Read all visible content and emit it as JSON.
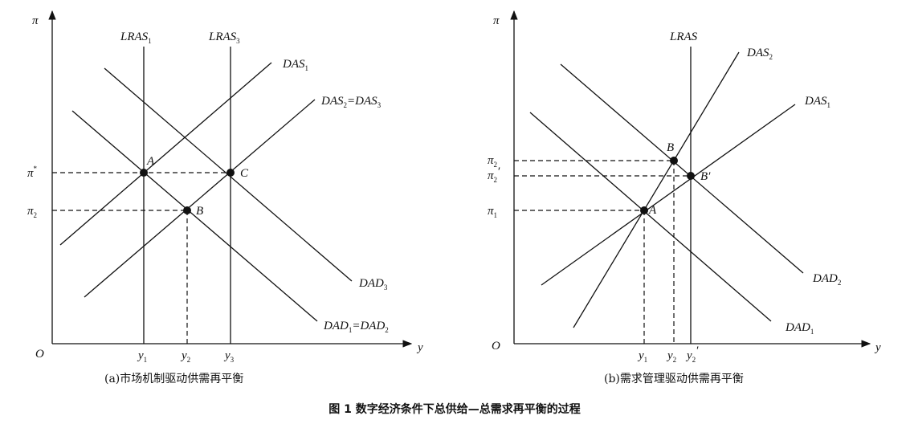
{
  "figure_title": "图 1  数字经济条件下总供给—总需求再平衡的过程",
  "panels": {
    "a": {
      "caption": "(a)市场机制驱动供需再平衡",
      "axis": {
        "y_label": "π",
        "x_label": "y",
        "origin": "O"
      },
      "curves": {
        "lras1": {
          "base": "LRAS",
          "sub": "1"
        },
        "lras3": {
          "base": "LRAS",
          "sub": "3"
        },
        "das1": {
          "base": "DAS",
          "sub": "1"
        },
        "das23": {
          "base1": "DAS",
          "sub1": "2",
          "mid": "=DAS",
          "sub2": "3"
        },
        "dad3": {
          "base": "DAD",
          "sub": "3"
        },
        "dad12": {
          "base1": "DAD",
          "sub1": "1",
          "mid": "=DAD",
          "sub2": "2"
        }
      },
      "points": {
        "A": "A",
        "B": "B",
        "C": "C"
      },
      "y_ticks": {
        "pi_star_base": "π",
        "pi_star_sup": "*",
        "pi2_base": "π",
        "pi2_sub": "2"
      },
      "x_ticks": {
        "y1_base": "y",
        "y1_sub": "1",
        "y2_base": "y",
        "y2_sub": "2",
        "y3_base": "y",
        "y3_sub": "3"
      }
    },
    "b": {
      "caption": "(b)需求管理驱动供需再平衡",
      "axis": {
        "y_label": "π",
        "x_label": "y",
        "origin": "O"
      },
      "curves": {
        "lras": {
          "base": "LRAS"
        },
        "das2": {
          "base": "DAS",
          "sub": "2"
        },
        "das1": {
          "base": "DAS",
          "sub": "1"
        },
        "dad2": {
          "base": "DAD",
          "sub": "2"
        },
        "dad1": {
          "base": "DAD",
          "sub": "1"
        }
      },
      "points": {
        "A": "A",
        "B": "B",
        "Bp": "B′"
      },
      "y_ticks": {
        "pi2_base": "π",
        "pi2_sub": "2",
        "pi2p_base": "π",
        "pi2p_sub": "2",
        "pi2p_prime": "′",
        "pi1_base": "π",
        "pi1_sub": "1"
      },
      "x_ticks": {
        "y1_base": "y",
        "y1_sub": "1",
        "y2_base": "y",
        "y2_sub": "2",
        "y2p_base": "y",
        "y2p_sub": "2",
        "y2p_prime": "′"
      }
    }
  }
}
